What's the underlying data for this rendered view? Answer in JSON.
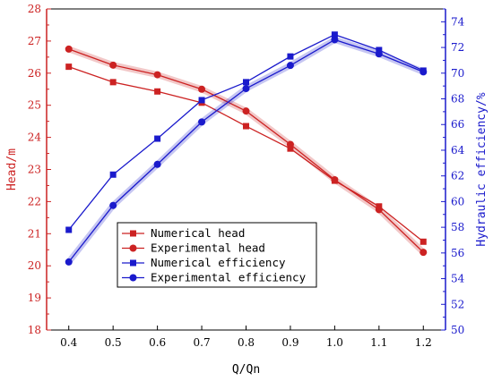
{
  "chart_data": {
    "type": "line",
    "x": [
      0.4,
      0.5,
      0.6,
      0.7,
      0.8,
      0.9,
      1.0,
      1.1,
      1.2
    ],
    "xlabel": "Q/Qn",
    "ylabel_left": "Head/m",
    "ylabel_right": "Hydraulic efficiency/%",
    "ylim_left": [
      18,
      28
    ],
    "ylim_right": [
      50,
      75
    ],
    "xticks": [
      "0.4",
      "0.5",
      "0.6",
      "0.7",
      "0.8",
      "0.9",
      "1.0",
      "1.1",
      "1.2"
    ],
    "yticks_left": [
      "18",
      "19",
      "20",
      "21",
      "22",
      "23",
      "24",
      "25",
      "26",
      "27",
      "28"
    ],
    "yticks_right": [
      "50",
      "52",
      "54",
      "56",
      "58",
      "60",
      "62",
      "64",
      "66",
      "68",
      "70",
      "72",
      "74"
    ],
    "legend_position": "lower-center",
    "grid": false,
    "series": [
      {
        "name": "Numerical head",
        "axis": "left",
        "marker": "square",
        "color": "#cc2222",
        "values": [
          26.2,
          25.72,
          25.43,
          25.08,
          24.35,
          23.65,
          22.65,
          21.85,
          20.75
        ]
      },
      {
        "name": "Experimental head",
        "axis": "left",
        "marker": "circle",
        "color": "#cc2222",
        "values": [
          26.75,
          26.25,
          25.95,
          25.5,
          24.82,
          23.78,
          22.68,
          21.75,
          20.42
        ]
      },
      {
        "name": "Numerical efficiency",
        "axis": "right",
        "marker": "square",
        "color": "#1a1acc",
        "values": [
          57.8,
          62.1,
          64.9,
          67.9,
          69.3,
          71.3,
          73.0,
          71.8,
          70.2
        ]
      },
      {
        "name": "Experimental efficiency",
        "axis": "right",
        "marker": "circle",
        "color": "#1a1acc",
        "values": [
          55.3,
          59.7,
          62.9,
          66.2,
          68.8,
          70.6,
          72.6,
          71.5,
          70.1
        ]
      }
    ]
  }
}
